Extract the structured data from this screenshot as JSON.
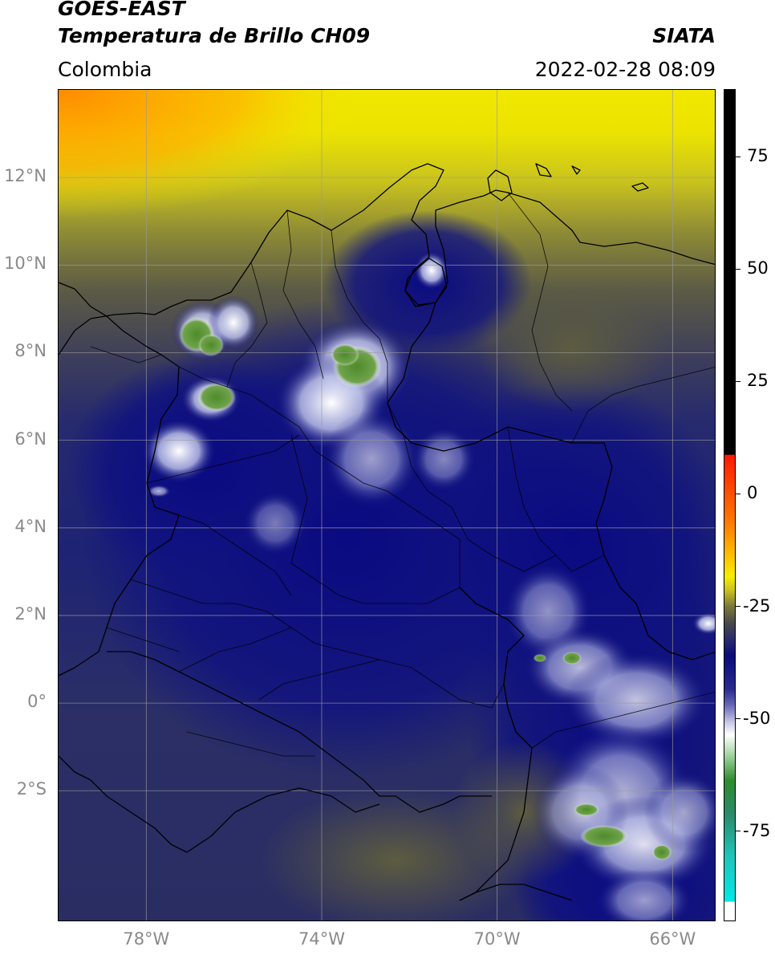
{
  "header": {
    "title_line1": "GOES-EAST",
    "title_line2": "Temperatura de Brillo CH09",
    "region": "Colombia",
    "source": "SIATA",
    "datetime": "2022-02-28 08:09"
  },
  "map": {
    "lon_range": [
      -80.0,
      -65.0
    ],
    "lat_range": [
      -5.0,
      14.0
    ],
    "gridlines": true,
    "lon_ticks": [
      "78°W",
      "74°W",
      "70°W",
      "66°W"
    ],
    "lat_ticks": [
      "12°N",
      "10°N",
      "8°N",
      "6°N",
      "4°N",
      "2°N",
      "0°",
      "2°S"
    ]
  },
  "colorbar": {
    "range": [
      -95,
      90
    ],
    "ticks": [
      "75",
      "50",
      "25",
      "0",
      "-25",
      "-50",
      "-75"
    ],
    "tick_values": [
      75,
      50,
      25,
      0,
      -25,
      -50,
      -75
    ],
    "colors": {
      "warm_black": "#000000",
      "red": "#ff3300",
      "orange": "#ff9a00",
      "yellow": "#f2f000",
      "olive": "#5a5a3e",
      "navy": "#0b0b7a",
      "white": "#ffffff",
      "green": "#2e8b2e",
      "cyan": "#00e0e0"
    }
  }
}
